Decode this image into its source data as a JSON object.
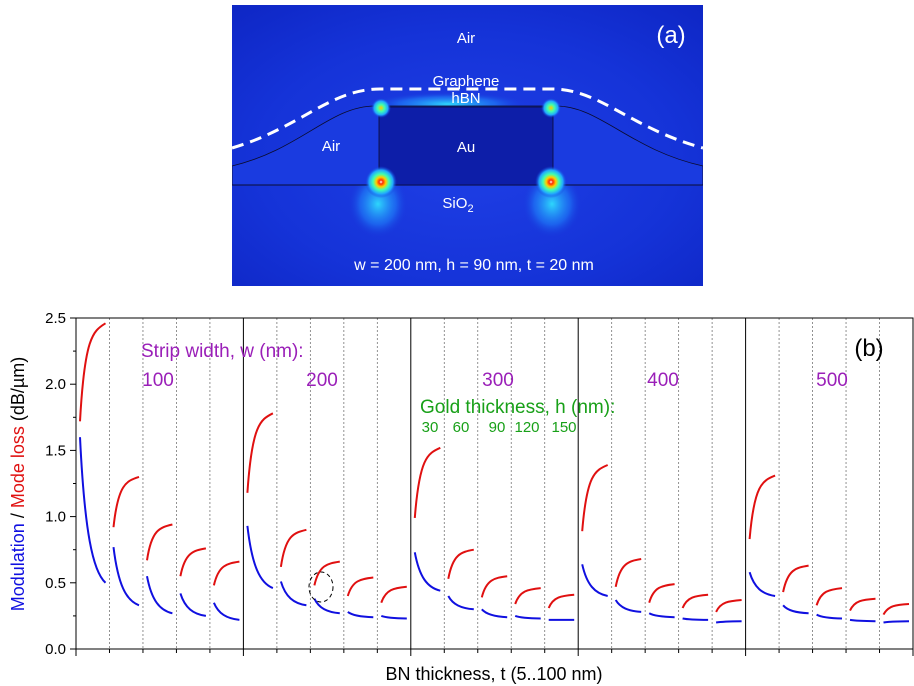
{
  "panel_a": {
    "panel_label": "(a)",
    "labels": {
      "air_top": "Air",
      "graphene": "Graphene",
      "hbn": "hBN",
      "air_left": "Air",
      "au": "Au",
      "sio2_main": "SiO",
      "sio2_sub": "2"
    },
    "params": "w = 200 nm, h = 90 nm, t = 20 nm"
  },
  "chart_data": {
    "type": "line",
    "panel_label": "(b)",
    "ylabel": {
      "part1": "Modulation",
      "sep": " / ",
      "part2": "Mode loss",
      "unit": " (dB/µm)",
      "color1": "#1010e0",
      "color2": "#e01010"
    },
    "xlabel": "BN thickness, t (5..100 nm)",
    "ylim": [
      0.0,
      2.5
    ],
    "yticks": [
      "0.0",
      "0.5",
      "1.0",
      "1.5",
      "2.0",
      "2.5"
    ],
    "annotations": {
      "strip_title": "Strip width, w (nm):",
      "strip_color": "#9a1fb8",
      "strip_widths": [
        "100",
        "200",
        "300",
        "400",
        "500"
      ],
      "gold_title": "Gold thickness, h (nm):",
      "gold_color": "#18a018",
      "gold_values": [
        "30",
        "60",
        "90",
        "120",
        "150"
      ]
    },
    "series_colors": {
      "modulation": "#1010e0",
      "mode_loss": "#e01010"
    },
    "groups": [
      {
        "w": 100,
        "segments": [
          {
            "h": 30,
            "modulation": [
              1.6,
              0.5
            ],
            "mode_loss": [
              1.72,
              2.46
            ]
          },
          {
            "h": 60,
            "modulation": [
              0.77,
              0.33
            ],
            "mode_loss": [
              0.92,
              1.3
            ]
          },
          {
            "h": 90,
            "modulation": [
              0.55,
              0.27
            ],
            "mode_loss": [
              0.67,
              0.94
            ]
          },
          {
            "h": 120,
            "modulation": [
              0.42,
              0.25
            ],
            "mode_loss": [
              0.55,
              0.76
            ]
          },
          {
            "h": 150,
            "modulation": [
              0.35,
              0.22
            ],
            "mode_loss": [
              0.48,
              0.66
            ]
          }
        ]
      },
      {
        "w": 200,
        "segments": [
          {
            "h": 30,
            "modulation": [
              0.93,
              0.46
            ],
            "mode_loss": [
              1.18,
              1.78
            ]
          },
          {
            "h": 60,
            "modulation": [
              0.51,
              0.33
            ],
            "mode_loss": [
              0.62,
              0.9
            ]
          },
          {
            "h": 90,
            "modulation": [
              0.38,
              0.27
            ],
            "mode_loss": [
              0.48,
              0.66
            ]
          },
          {
            "h": 120,
            "modulation": [
              0.28,
              0.24
            ],
            "mode_loss": [
              0.4,
              0.54
            ]
          },
          {
            "h": 150,
            "modulation": [
              0.25,
              0.23
            ],
            "mode_loss": [
              0.35,
              0.47
            ]
          }
        ]
      },
      {
        "w": 300,
        "segments": [
          {
            "h": 30,
            "modulation": [
              0.73,
              0.44
            ],
            "mode_loss": [
              0.99,
              1.52
            ]
          },
          {
            "h": 60,
            "modulation": [
              0.4,
              0.3
            ],
            "mode_loss": [
              0.53,
              0.75
            ]
          },
          {
            "h": 90,
            "modulation": [
              0.3,
              0.24
            ],
            "mode_loss": [
              0.39,
              0.55
            ]
          },
          {
            "h": 120,
            "modulation": [
              0.25,
              0.23
            ],
            "mode_loss": [
              0.34,
              0.46
            ]
          },
          {
            "h": 150,
            "modulation": [
              0.22,
              0.22
            ],
            "mode_loss": [
              0.31,
              0.41
            ]
          }
        ]
      },
      {
        "w": 400,
        "segments": [
          {
            "h": 30,
            "modulation": [
              0.64,
              0.4
            ],
            "mode_loss": [
              0.89,
              1.39
            ]
          },
          {
            "h": 60,
            "modulation": [
              0.37,
              0.28
            ],
            "mode_loss": [
              0.47,
              0.68
            ]
          },
          {
            "h": 90,
            "modulation": [
              0.27,
              0.24
            ],
            "mode_loss": [
              0.35,
              0.49
            ]
          },
          {
            "h": 120,
            "modulation": [
              0.23,
              0.22
            ],
            "mode_loss": [
              0.31,
              0.41
            ]
          },
          {
            "h": 150,
            "modulation": [
              0.2,
              0.21
            ],
            "mode_loss": [
              0.28,
              0.37
            ]
          }
        ]
      },
      {
        "w": 500,
        "segments": [
          {
            "h": 30,
            "modulation": [
              0.58,
              0.4
            ],
            "mode_loss": [
              0.83,
              1.31
            ]
          },
          {
            "h": 60,
            "modulation": [
              0.33,
              0.27
            ],
            "mode_loss": [
              0.43,
              0.63
            ]
          },
          {
            "h": 90,
            "modulation": [
              0.26,
              0.23
            ],
            "mode_loss": [
              0.33,
              0.46
            ]
          },
          {
            "h": 120,
            "modulation": [
              0.22,
              0.21
            ],
            "mode_loss": [
              0.29,
              0.38
            ]
          },
          {
            "h": 150,
            "modulation": [
              0.2,
              0.21
            ],
            "mode_loss": [
              0.26,
              0.34
            ]
          }
        ]
      }
    ],
    "highlighted_point": {
      "w": 200,
      "h": 90,
      "t_nm": 20
    }
  }
}
